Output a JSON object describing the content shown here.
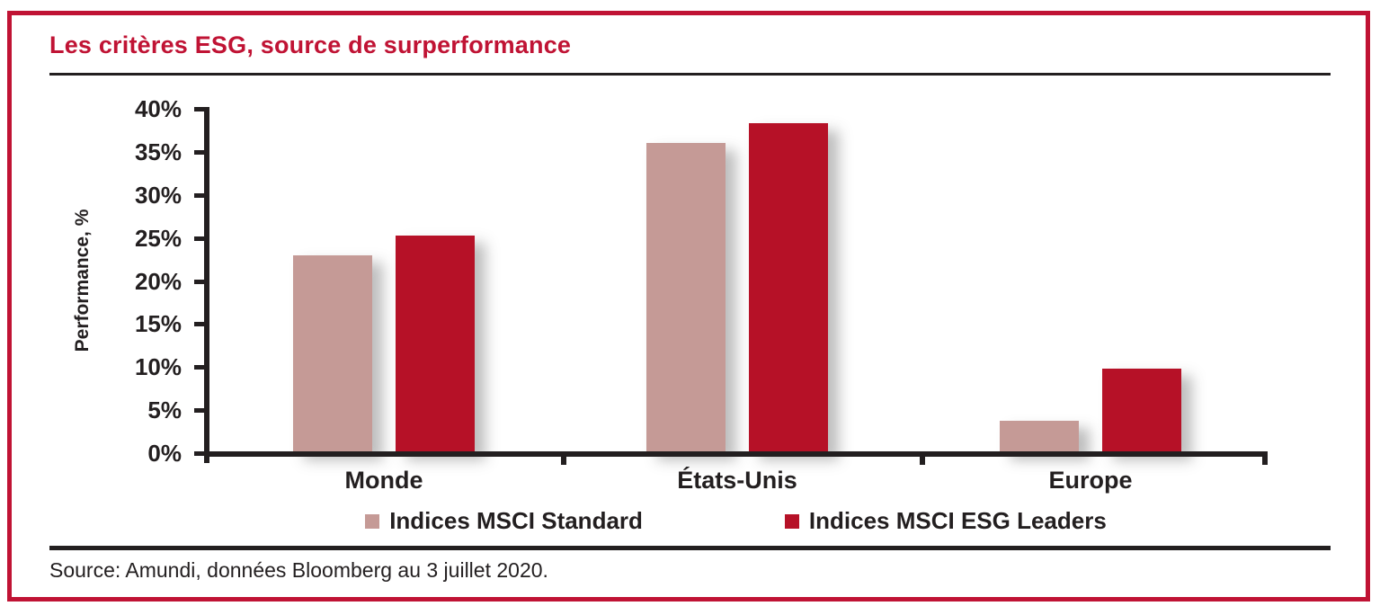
{
  "title": "Les critères ESG, source de surperformance",
  "source": "Source: Amundi, données Bloomberg au 3 juillet 2020.",
  "colors": {
    "accent": "#c01334",
    "bar_standard": "#c59a96",
    "bar_esg_leaders": "#b61127",
    "ink": "#231f20"
  },
  "chart_data": {
    "type": "bar",
    "title": "Les critères ESG, source de surperformance",
    "categories": [
      "Monde",
      "États-Unis",
      "Europe"
    ],
    "series": [
      {
        "name": "Indices MSCI Standard",
        "color": "#c59a96",
        "values": [
          23.0,
          36.0,
          3.8
        ]
      },
      {
        "name": "Indices MSCI ESG Leaders",
        "color": "#b61127",
        "values": [
          25.3,
          38.3,
          9.8
        ]
      }
    ],
    "xlabel": "",
    "ylabel": "Performance, %",
    "ylim": [
      0,
      40
    ],
    "ytick_step": 5,
    "ytick_labels": [
      "0%",
      "5%",
      "10%",
      "15%",
      "20%",
      "25%",
      "30%",
      "35%",
      "40%"
    ],
    "grid": false,
    "legend_position": "bottom"
  }
}
